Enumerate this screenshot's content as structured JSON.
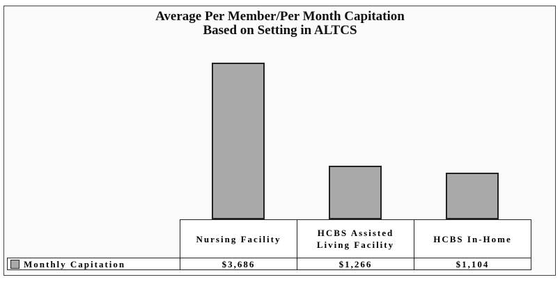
{
  "chart_data": {
    "type": "bar",
    "title": "Average Per Member/Per Month Capitation Based on Setting in ALTCS",
    "categories": [
      "Nursing Facility",
      "HCBS Assisted Living Facility",
      "HCBS In-Home"
    ],
    "series": [
      {
        "name": "Monthly Capitation",
        "color": "#a9a9a9",
        "values": [
          3686,
          1266,
          1104
        ],
        "value_labels": [
          "$3,686",
          "$1,266",
          "$1,104"
        ]
      }
    ]
  }
}
